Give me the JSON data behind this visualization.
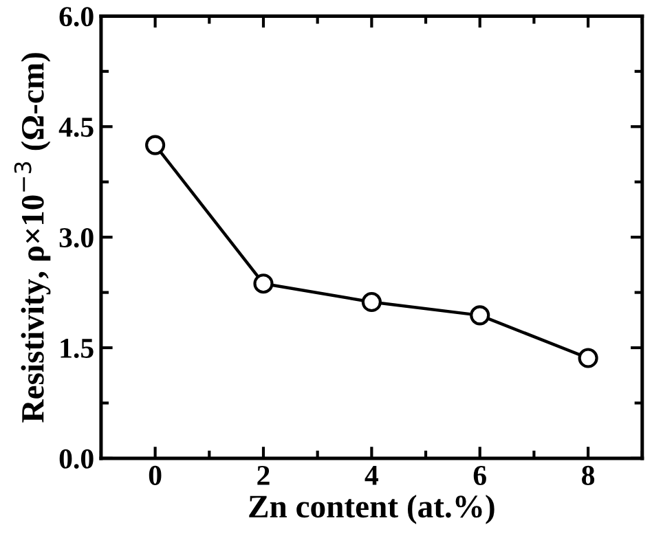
{
  "chart_data": {
    "type": "line",
    "xlabel": "Zn content (at.%)",
    "ylabel": "Resistivity, ρ×10$^{−3}$ (Ω-cm)",
    "x": [
      0,
      2,
      4,
      6,
      8
    ],
    "series": [
      {
        "color": "#000000",
        "values": [
          4.25,
          2.37,
          2.12,
          1.94,
          1.36
        ]
      }
    ],
    "marker": "circle",
    "line_style": "solid",
    "grid": false,
    "legend": false,
    "xlim": [
      -1,
      9
    ],
    "xticks": [
      0,
      2,
      4,
      6,
      8
    ],
    "ylim": [
      0.0,
      6.0
    ],
    "yticks": [
      {
        "value": 0,
        "label": "0.0"
      },
      {
        "value": 1.5,
        "label": "1.5"
      },
      {
        "value": 3,
        "label": "3.0"
      },
      {
        "value": 4.5,
        "label": "4.5"
      },
      {
        "value": 6,
        "label": "6.0"
      }
    ]
  }
}
